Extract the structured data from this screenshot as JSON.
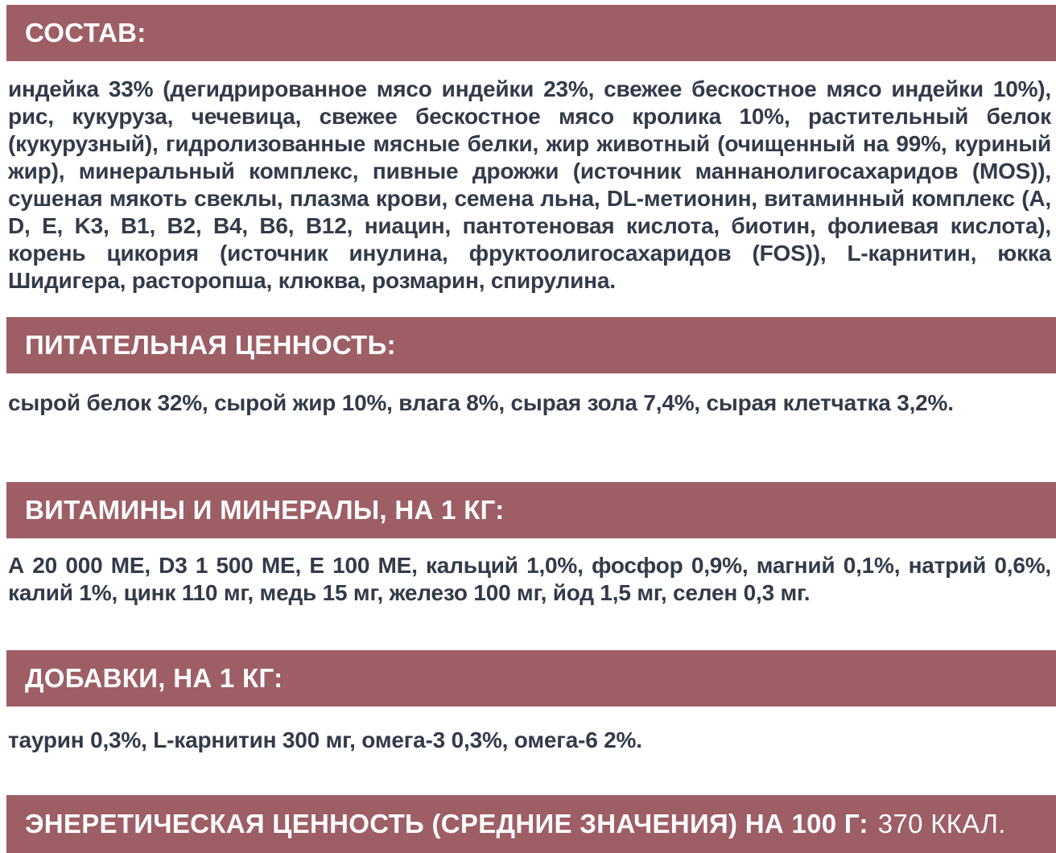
{
  "page": {
    "background_color": "#ffffff",
    "accent_color": "#9e5e65",
    "body_text_color": "#333a4a",
    "header_text_color": "#ffffff"
  },
  "sections": [
    {
      "header": "СОСТАВ:",
      "body": "индейка 33% (дегидрированное мясо индейки 23%, свежее бескостное мясо индейки 10%), рис, кукуруза, чечевица, свежее бескостное мясо кролика 10%, растительный белок (кукурузный), гидролизованные мясные белки, жир животный (очищенный на 99%, куриный жир), минеральный комплекс, пивные дрожжи (источник маннанолигосахаридов (MOS)), сушеная мякоть свеклы, плазма крови, семена льна, DL-метионин, витаминный комплекс (A, D, E, K3, B1, B2, B4, B6, B12, ниацин, пантотеновая кислота, биотин, фолиевая кислота), корень цикория (источник инулина, фруктоолигосахаридов (FOS)), L-карнитин, юкка Шидигера, расторопша, клюква, розмарин, спирулина."
    },
    {
      "header": "ПИТАТЕЛЬНАЯ ЦЕННОСТЬ:",
      "body": "сырой белок 32%, сырой жир 10%, влага 8%, сырая зола 7,4%, сырая клетчатка 3,2%."
    },
    {
      "header": "ВИТАМИНЫ И МИНЕРАЛЫ, НА 1 КГ:",
      "body": "А 20 000 МЕ, D3 1 500 МЕ, Е 100 МЕ, кальций 1,0%, фосфор 0,9%, магний 0,1%, натрий 0,6%, калий 1%, цинк 110 мг, медь 15 мг, железо 100 мг, йод 1,5 мг, селен 0,3 мг."
    },
    {
      "header": "ДОБАВКИ, НА 1 КГ:",
      "body": "таурин 0,3%, L-карнитин 300 мг, омега-3 0,3%, омега-6 2%."
    }
  ],
  "energy": {
    "label": "ЭНЕРЕТИЧЕСКАЯ ЦЕННОСТЬ (СРЕДНИЕ ЗНАЧЕНИЯ) НА 100 Г:",
    "value": "370 ККАЛ."
  }
}
